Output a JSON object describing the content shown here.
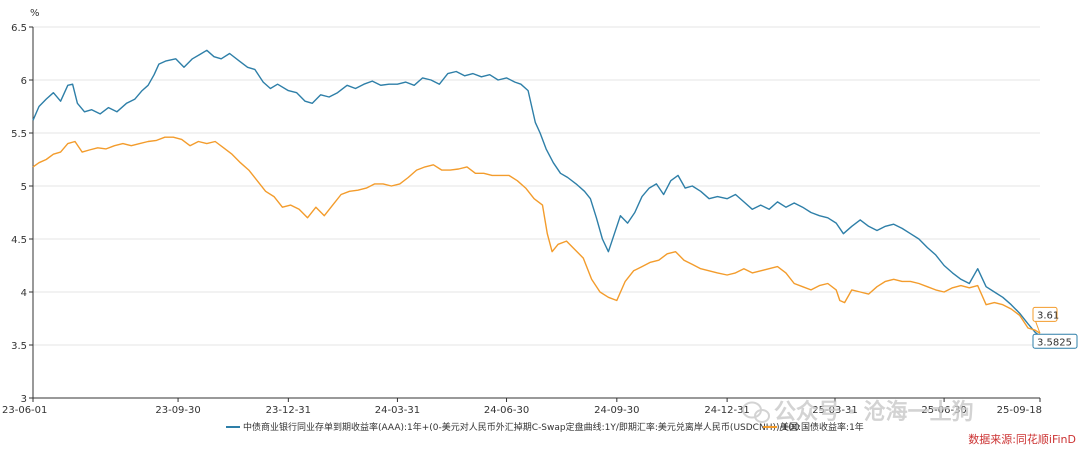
{
  "chart_data": {
    "type": "line",
    "unit_label": "%",
    "ylim": [
      3,
      6.5
    ],
    "y_ticks": [
      "3",
      "3.5",
      "4",
      "4.5",
      "5",
      "5.5",
      "6",
      "6.5"
    ],
    "x_range": [
      "2023-06-01",
      "2025-09-18"
    ],
    "x_ticks": [
      {
        "date": "2023-06-01",
        "label": "23-06-01"
      },
      {
        "date": "2023-09-30",
        "label": "23-09-30"
      },
      {
        "date": "2023-12-31",
        "label": "23-12-31"
      },
      {
        "date": "2024-03-31",
        "label": "24-03-31"
      },
      {
        "date": "2024-06-30",
        "label": "24-06-30"
      },
      {
        "date": "2024-09-30",
        "label": "24-09-30"
      },
      {
        "date": "2024-12-31",
        "label": "24-12-31"
      },
      {
        "date": "2025-03-31",
        "label": "25-03-31"
      },
      {
        "date": "2025-06-30",
        "label": "25-06-30"
      },
      {
        "date": "2025-09-18",
        "label": "25-09-18"
      }
    ],
    "grid": "horizontal",
    "legend_position": "bottom",
    "series": [
      {
        "name": "中债商业银行同业存单到期收益率(AAA):1年+(0-美元对人民币外汇掉期C-Swap定盘曲线:1Y/即期汇率:美元兑离岸人民币(USDCNH))/100",
        "color": "#2e7fa8",
        "end_label": "3.5825",
        "points": [
          [
            "2023-06-01",
            5.62
          ],
          [
            "2023-06-06",
            5.75
          ],
          [
            "2023-06-12",
            5.82
          ],
          [
            "2023-06-18",
            5.88
          ],
          [
            "2023-06-24",
            5.8
          ],
          [
            "2023-06-30",
            5.95
          ],
          [
            "2023-07-04",
            5.96
          ],
          [
            "2023-07-08",
            5.78
          ],
          [
            "2023-07-14",
            5.7
          ],
          [
            "2023-07-20",
            5.72
          ],
          [
            "2023-07-27",
            5.68
          ],
          [
            "2023-08-03",
            5.74
          ],
          [
            "2023-08-10",
            5.7
          ],
          [
            "2023-08-18",
            5.78
          ],
          [
            "2023-08-25",
            5.82
          ],
          [
            "2023-08-31",
            5.9
          ],
          [
            "2023-09-05",
            5.95
          ],
          [
            "2023-09-10",
            6.05
          ],
          [
            "2023-09-14",
            6.15
          ],
          [
            "2023-09-20",
            6.18
          ],
          [
            "2023-09-28",
            6.2
          ],
          [
            "2023-10-05",
            6.12
          ],
          [
            "2023-10-12",
            6.2
          ],
          [
            "2023-10-18",
            6.24
          ],
          [
            "2023-10-24",
            6.28
          ],
          [
            "2023-10-30",
            6.22
          ],
          [
            "2023-11-05",
            6.2
          ],
          [
            "2023-11-12",
            6.25
          ],
          [
            "2023-11-20",
            6.18
          ],
          [
            "2023-11-27",
            6.12
          ],
          [
            "2023-12-03",
            6.1
          ],
          [
            "2023-12-10",
            5.98
          ],
          [
            "2023-12-16",
            5.92
          ],
          [
            "2023-12-22",
            5.96
          ],
          [
            "2023-12-31",
            5.9
          ],
          [
            "2024-01-07",
            5.88
          ],
          [
            "2024-01-14",
            5.8
          ],
          [
            "2024-01-20",
            5.78
          ],
          [
            "2024-01-27",
            5.86
          ],
          [
            "2024-02-03",
            5.84
          ],
          [
            "2024-02-10",
            5.88
          ],
          [
            "2024-02-18",
            5.95
          ],
          [
            "2024-02-25",
            5.92
          ],
          [
            "2024-03-03",
            5.96
          ],
          [
            "2024-03-10",
            5.99
          ],
          [
            "2024-03-17",
            5.95
          ],
          [
            "2024-03-24",
            5.96
          ],
          [
            "2024-03-31",
            5.96
          ],
          [
            "2024-04-07",
            5.98
          ],
          [
            "2024-04-14",
            5.95
          ],
          [
            "2024-04-21",
            6.02
          ],
          [
            "2024-04-28",
            6.0
          ],
          [
            "2024-05-05",
            5.96
          ],
          [
            "2024-05-12",
            6.06
          ],
          [
            "2024-05-19",
            6.08
          ],
          [
            "2024-05-26",
            6.04
          ],
          [
            "2024-06-02",
            6.06
          ],
          [
            "2024-06-09",
            6.03
          ],
          [
            "2024-06-16",
            6.05
          ],
          [
            "2024-06-23",
            6.0
          ],
          [
            "2024-06-30",
            6.02
          ],
          [
            "2024-07-07",
            5.98
          ],
          [
            "2024-07-12",
            5.96
          ],
          [
            "2024-07-18",
            5.9
          ],
          [
            "2024-07-24",
            5.6
          ],
          [
            "2024-07-28",
            5.5
          ],
          [
            "2024-08-02",
            5.35
          ],
          [
            "2024-08-08",
            5.22
          ],
          [
            "2024-08-14",
            5.12
          ],
          [
            "2024-08-20",
            5.08
          ],
          [
            "2024-08-27",
            5.02
          ],
          [
            "2024-09-03",
            4.95
          ],
          [
            "2024-09-08",
            4.88
          ],
          [
            "2024-09-13",
            4.7
          ],
          [
            "2024-09-18",
            4.5
          ],
          [
            "2024-09-23",
            4.38
          ],
          [
            "2024-09-28",
            4.55
          ],
          [
            "2024-10-03",
            4.72
          ],
          [
            "2024-10-09",
            4.65
          ],
          [
            "2024-10-15",
            4.75
          ],
          [
            "2024-10-21",
            4.9
          ],
          [
            "2024-10-27",
            4.98
          ],
          [
            "2024-11-02",
            5.02
          ],
          [
            "2024-11-08",
            4.92
          ],
          [
            "2024-11-14",
            5.05
          ],
          [
            "2024-11-20",
            5.1
          ],
          [
            "2024-11-26",
            4.98
          ],
          [
            "2024-12-02",
            5.0
          ],
          [
            "2024-12-09",
            4.95
          ],
          [
            "2024-12-16",
            4.88
          ],
          [
            "2024-12-23",
            4.9
          ],
          [
            "2024-12-31",
            4.88
          ],
          [
            "2025-01-07",
            4.92
          ],
          [
            "2025-01-14",
            4.85
          ],
          [
            "2025-01-21",
            4.78
          ],
          [
            "2025-01-28",
            4.82
          ],
          [
            "2025-02-04",
            4.78
          ],
          [
            "2025-02-11",
            4.85
          ],
          [
            "2025-02-18",
            4.8
          ],
          [
            "2025-02-25",
            4.84
          ],
          [
            "2025-03-04",
            4.8
          ],
          [
            "2025-03-11",
            4.75
          ],
          [
            "2025-03-18",
            4.72
          ],
          [
            "2025-03-25",
            4.7
          ],
          [
            "2025-04-01",
            4.65
          ],
          [
            "2025-04-07",
            4.55
          ],
          [
            "2025-04-14",
            4.62
          ],
          [
            "2025-04-21",
            4.68
          ],
          [
            "2025-04-28",
            4.62
          ],
          [
            "2025-05-05",
            4.58
          ],
          [
            "2025-05-12",
            4.62
          ],
          [
            "2025-05-19",
            4.64
          ],
          [
            "2025-05-26",
            4.6
          ],
          [
            "2025-06-02",
            4.55
          ],
          [
            "2025-06-09",
            4.5
          ],
          [
            "2025-06-16",
            4.42
          ],
          [
            "2025-06-23",
            4.35
          ],
          [
            "2025-06-30",
            4.25
          ],
          [
            "2025-07-07",
            4.18
          ],
          [
            "2025-07-14",
            4.12
          ],
          [
            "2025-07-21",
            4.08
          ],
          [
            "2025-07-28",
            4.22
          ],
          [
            "2025-08-04",
            4.05
          ],
          [
            "2025-08-11",
            4.0
          ],
          [
            "2025-08-18",
            3.95
          ],
          [
            "2025-08-25",
            3.88
          ],
          [
            "2025-09-01",
            3.8
          ],
          [
            "2025-09-08",
            3.7
          ],
          [
            "2025-09-14",
            3.62
          ],
          [
            "2025-09-18",
            3.5825
          ]
        ]
      },
      {
        "name": "美国:国债收益率:1年",
        "color": "#f39c2c",
        "end_label": "3.61",
        "points": [
          [
            "2023-06-01",
            5.18
          ],
          [
            "2023-06-06",
            5.22
          ],
          [
            "2023-06-12",
            5.25
          ],
          [
            "2023-06-18",
            5.3
          ],
          [
            "2023-06-24",
            5.32
          ],
          [
            "2023-06-30",
            5.4
          ],
          [
            "2023-07-06",
            5.42
          ],
          [
            "2023-07-12",
            5.32
          ],
          [
            "2023-07-18",
            5.34
          ],
          [
            "2023-07-25",
            5.36
          ],
          [
            "2023-08-01",
            5.35
          ],
          [
            "2023-08-08",
            5.38
          ],
          [
            "2023-08-15",
            5.4
          ],
          [
            "2023-08-22",
            5.38
          ],
          [
            "2023-08-29",
            5.4
          ],
          [
            "2023-09-05",
            5.42
          ],
          [
            "2023-09-12",
            5.43
          ],
          [
            "2023-09-19",
            5.46
          ],
          [
            "2023-09-26",
            5.46
          ],
          [
            "2023-10-03",
            5.44
          ],
          [
            "2023-10-10",
            5.38
          ],
          [
            "2023-10-17",
            5.42
          ],
          [
            "2023-10-24",
            5.4
          ],
          [
            "2023-10-31",
            5.42
          ],
          [
            "2023-11-07",
            5.36
          ],
          [
            "2023-11-14",
            5.3
          ],
          [
            "2023-11-21",
            5.22
          ],
          [
            "2023-11-28",
            5.15
          ],
          [
            "2023-12-05",
            5.05
          ],
          [
            "2023-12-12",
            4.95
          ],
          [
            "2023-12-19",
            4.9
          ],
          [
            "2023-12-26",
            4.8
          ],
          [
            "2024-01-02",
            4.82
          ],
          [
            "2024-01-09",
            4.78
          ],
          [
            "2024-01-16",
            4.7
          ],
          [
            "2024-01-23",
            4.8
          ],
          [
            "2024-01-30",
            4.72
          ],
          [
            "2024-02-06",
            4.82
          ],
          [
            "2024-02-13",
            4.92
          ],
          [
            "2024-02-20",
            4.95
          ],
          [
            "2024-02-27",
            4.96
          ],
          [
            "2024-03-05",
            4.98
          ],
          [
            "2024-03-12",
            5.02
          ],
          [
            "2024-03-19",
            5.02
          ],
          [
            "2024-03-26",
            5.0
          ],
          [
            "2024-04-02",
            5.02
          ],
          [
            "2024-04-09",
            5.08
          ],
          [
            "2024-04-16",
            5.15
          ],
          [
            "2024-04-23",
            5.18
          ],
          [
            "2024-04-30",
            5.2
          ],
          [
            "2024-05-07",
            5.15
          ],
          [
            "2024-05-14",
            5.15
          ],
          [
            "2024-05-21",
            5.16
          ],
          [
            "2024-05-28",
            5.18
          ],
          [
            "2024-06-04",
            5.12
          ],
          [
            "2024-06-11",
            5.12
          ],
          [
            "2024-06-18",
            5.1
          ],
          [
            "2024-06-25",
            5.1
          ],
          [
            "2024-07-02",
            5.1
          ],
          [
            "2024-07-09",
            5.05
          ],
          [
            "2024-07-16",
            4.98
          ],
          [
            "2024-07-23",
            4.88
          ],
          [
            "2024-07-30",
            4.82
          ],
          [
            "2024-08-03",
            4.55
          ],
          [
            "2024-08-07",
            4.38
          ],
          [
            "2024-08-12",
            4.45
          ],
          [
            "2024-08-19",
            4.48
          ],
          [
            "2024-08-26",
            4.4
          ],
          [
            "2024-09-02",
            4.32
          ],
          [
            "2024-09-09",
            4.12
          ],
          [
            "2024-09-16",
            4.0
          ],
          [
            "2024-09-23",
            3.95
          ],
          [
            "2024-09-30",
            3.92
          ],
          [
            "2024-10-07",
            4.1
          ],
          [
            "2024-10-14",
            4.2
          ],
          [
            "2024-10-21",
            4.24
          ],
          [
            "2024-10-28",
            4.28
          ],
          [
            "2024-11-04",
            4.3
          ],
          [
            "2024-11-11",
            4.36
          ],
          [
            "2024-11-18",
            4.38
          ],
          [
            "2024-11-25",
            4.3
          ],
          [
            "2024-12-02",
            4.26
          ],
          [
            "2024-12-09",
            4.22
          ],
          [
            "2024-12-16",
            4.2
          ],
          [
            "2024-12-23",
            4.18
          ],
          [
            "2024-12-31",
            4.16
          ],
          [
            "2025-01-07",
            4.18
          ],
          [
            "2025-01-14",
            4.22
          ],
          [
            "2025-01-21",
            4.18
          ],
          [
            "2025-01-28",
            4.2
          ],
          [
            "2025-02-04",
            4.22
          ],
          [
            "2025-02-11",
            4.24
          ],
          [
            "2025-02-18",
            4.18
          ],
          [
            "2025-02-25",
            4.08
          ],
          [
            "2025-03-04",
            4.05
          ],
          [
            "2025-03-11",
            4.02
          ],
          [
            "2025-03-18",
            4.06
          ],
          [
            "2025-03-25",
            4.08
          ],
          [
            "2025-04-01",
            4.02
          ],
          [
            "2025-04-04",
            3.92
          ],
          [
            "2025-04-08",
            3.9
          ],
          [
            "2025-04-14",
            4.02
          ],
          [
            "2025-04-21",
            4.0
          ],
          [
            "2025-04-28",
            3.98
          ],
          [
            "2025-05-05",
            4.05
          ],
          [
            "2025-05-12",
            4.1
          ],
          [
            "2025-05-19",
            4.12
          ],
          [
            "2025-05-26",
            4.1
          ],
          [
            "2025-06-02",
            4.1
          ],
          [
            "2025-06-09",
            4.08
          ],
          [
            "2025-06-16",
            4.05
          ],
          [
            "2025-06-23",
            4.02
          ],
          [
            "2025-06-30",
            4.0
          ],
          [
            "2025-07-07",
            4.04
          ],
          [
            "2025-07-14",
            4.06
          ],
          [
            "2025-07-21",
            4.04
          ],
          [
            "2025-07-28",
            4.06
          ],
          [
            "2025-08-04",
            3.88
          ],
          [
            "2025-08-11",
            3.9
          ],
          [
            "2025-08-18",
            3.88
          ],
          [
            "2025-08-25",
            3.84
          ],
          [
            "2025-09-01",
            3.78
          ],
          [
            "2025-09-08",
            3.66
          ],
          [
            "2025-09-14",
            3.64
          ],
          [
            "2025-09-18",
            3.61
          ]
        ]
      }
    ]
  },
  "watermark": {
    "text": "公众号 · 沧海一土狗",
    "icon": "wechat-icon"
  },
  "source_tag": {
    "text": "数据来源:同花顺iFinD",
    "color": "#cc3333"
  }
}
